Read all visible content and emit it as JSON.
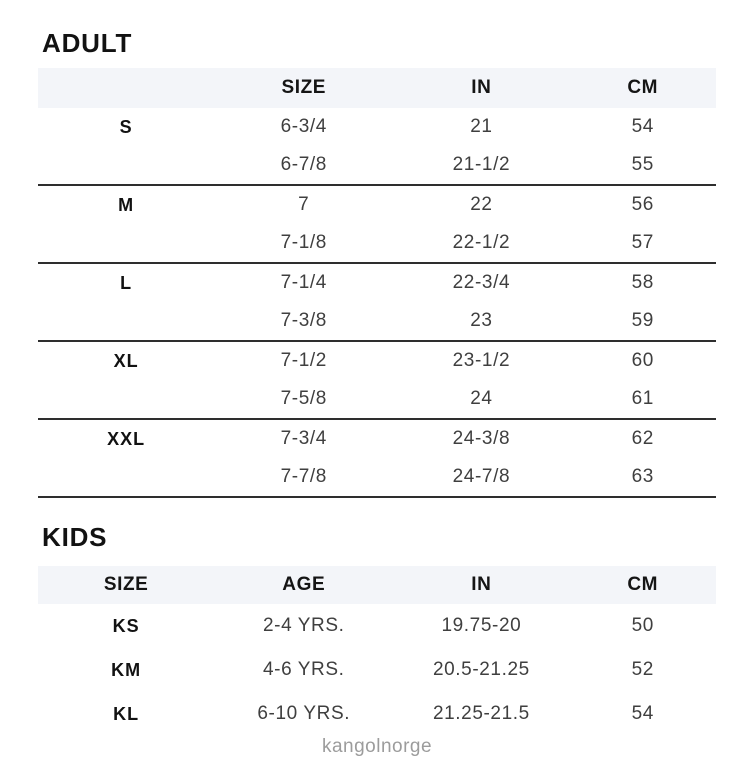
{
  "colors": {
    "header_band_bg": "#f3f5f9",
    "separator_line": "#2e2e2e",
    "value_text": "#3f3f3f",
    "label_text": "#121212",
    "brand_text": "#9c9c9c"
  },
  "adult": {
    "title": "ADULT",
    "headers": [
      "",
      "SIZE",
      "IN",
      "CM"
    ],
    "groups": [
      {
        "label": "S",
        "rows": [
          [
            "6-3/4",
            "21",
            "54"
          ],
          [
            "6-7/8",
            "21-1/2",
            "55"
          ]
        ]
      },
      {
        "label": "M",
        "rows": [
          [
            "7",
            "22",
            "56"
          ],
          [
            "7-1/8",
            "22-1/2",
            "57"
          ]
        ]
      },
      {
        "label": "L",
        "rows": [
          [
            "7-1/4",
            "22-3/4",
            "58"
          ],
          [
            "7-3/8",
            "23",
            "59"
          ]
        ]
      },
      {
        "label": "XL",
        "rows": [
          [
            "7-1/2",
            "23-1/2",
            "60"
          ],
          [
            "7-5/8",
            "24",
            "61"
          ]
        ]
      },
      {
        "label": "XXL",
        "rows": [
          [
            "7-3/4",
            "24-3/8",
            "62"
          ],
          [
            "7-7/8",
            "24-7/8",
            "63"
          ]
        ]
      }
    ]
  },
  "kids": {
    "title": "KIDS",
    "headers": [
      "SIZE",
      "AGE",
      "IN",
      "CM"
    ],
    "rows": [
      {
        "size": "KS",
        "age": "2-4 YRS.",
        "in": "19.75-20",
        "cm": "50"
      },
      {
        "size": "KM",
        "age": "4-6 YRS.",
        "in": "20.5-21.25",
        "cm": "52"
      },
      {
        "size": "KL",
        "age": "6-10 YRS.",
        "in": "21.25-21.5",
        "cm": "54"
      }
    ]
  },
  "footer": {
    "brand": "kangolnorge"
  }
}
